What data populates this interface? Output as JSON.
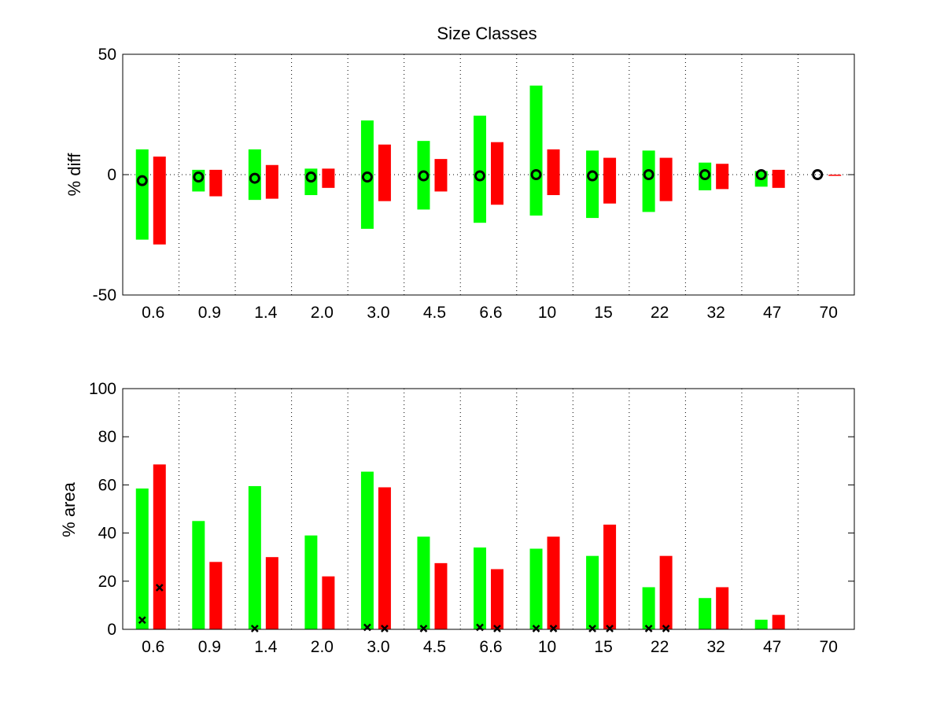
{
  "colors": {
    "green": "#00ff00",
    "red": "#ff0000",
    "marker": "#000000"
  },
  "chart_data": [
    {
      "type": "bar",
      "subtype": "range-bars",
      "title": "Size Classes",
      "xlabel": "",
      "ylabel": "% diff",
      "ylim": [
        -50,
        50
      ],
      "yticks": [
        -50,
        0,
        50
      ],
      "categories": [
        "0.6",
        "0.9",
        "1.4",
        "2.0",
        "3.0",
        "4.5",
        "6.6",
        "10",
        "15",
        "22",
        "32",
        "47",
        "70"
      ],
      "grid": "vertical dotted separators between classes; dotted zero line",
      "series": [
        {
          "color": "green",
          "ranges": [
            [
              -27,
              10.5
            ],
            [
              -7,
              2
            ],
            [
              -10.5,
              10.5
            ],
            [
              -8.5,
              2.5
            ],
            [
              -22.5,
              22.5
            ],
            [
              -14.5,
              14
            ],
            [
              -20,
              24.5
            ],
            [
              -17,
              37
            ],
            [
              -18,
              10
            ],
            [
              -15.5,
              10
            ],
            [
              -6.5,
              5
            ],
            [
              -5,
              1.5
            ],
            [
              0,
              0
            ]
          ]
        },
        {
          "color": "red",
          "ranges": [
            [
              -29,
              7.5
            ],
            [
              -9,
              2
            ],
            [
              -10,
              4
            ],
            [
              -5.5,
              2.5
            ],
            [
              -11,
              12.5
            ],
            [
              -7,
              6.5
            ],
            [
              -12.5,
              13.5
            ],
            [
              -8.5,
              10.5
            ],
            [
              -12,
              7
            ],
            [
              -11,
              7
            ],
            [
              -6,
              4.5
            ],
            [
              -5.5,
              2
            ],
            [
              -0.5,
              0
            ]
          ]
        }
      ],
      "markers": {
        "symbol": "circle",
        "values": [
          -2.5,
          -1,
          -1.5,
          -1,
          -1,
          -0.5,
          -0.5,
          0,
          -0.5,
          0,
          0,
          0,
          0
        ]
      }
    },
    {
      "type": "bar",
      "title": "",
      "xlabel": "",
      "ylabel": "% area",
      "ylim": [
        0,
        100
      ],
      "yticks": [
        0,
        20,
        40,
        60,
        80,
        100
      ],
      "categories": [
        "0.6",
        "0.9",
        "1.4",
        "2.0",
        "3.0",
        "4.5",
        "6.6",
        "10",
        "15",
        "22",
        "32",
        "47",
        "70"
      ],
      "grid": "vertical dotted separators between classes",
      "series": [
        {
          "color": "green",
          "values": [
            58.5,
            45,
            59.5,
            39,
            65.5,
            38.5,
            34,
            33.5,
            30.5,
            17.5,
            13,
            4,
            0
          ]
        },
        {
          "color": "red",
          "values": [
            68.5,
            28,
            30,
            22,
            59,
            27.5,
            25,
            38.5,
            43.5,
            30.5,
            17.5,
            6,
            0
          ]
        }
      ],
      "markers": {
        "symbol": "x",
        "green": [
          3.5,
          null,
          0,
          null,
          0.5,
          0,
          0.5,
          0,
          0,
          0,
          null,
          null,
          null
        ],
        "red": [
          17,
          null,
          null,
          null,
          0,
          null,
          0,
          0,
          0,
          0,
          null,
          null,
          null
        ]
      }
    }
  ]
}
